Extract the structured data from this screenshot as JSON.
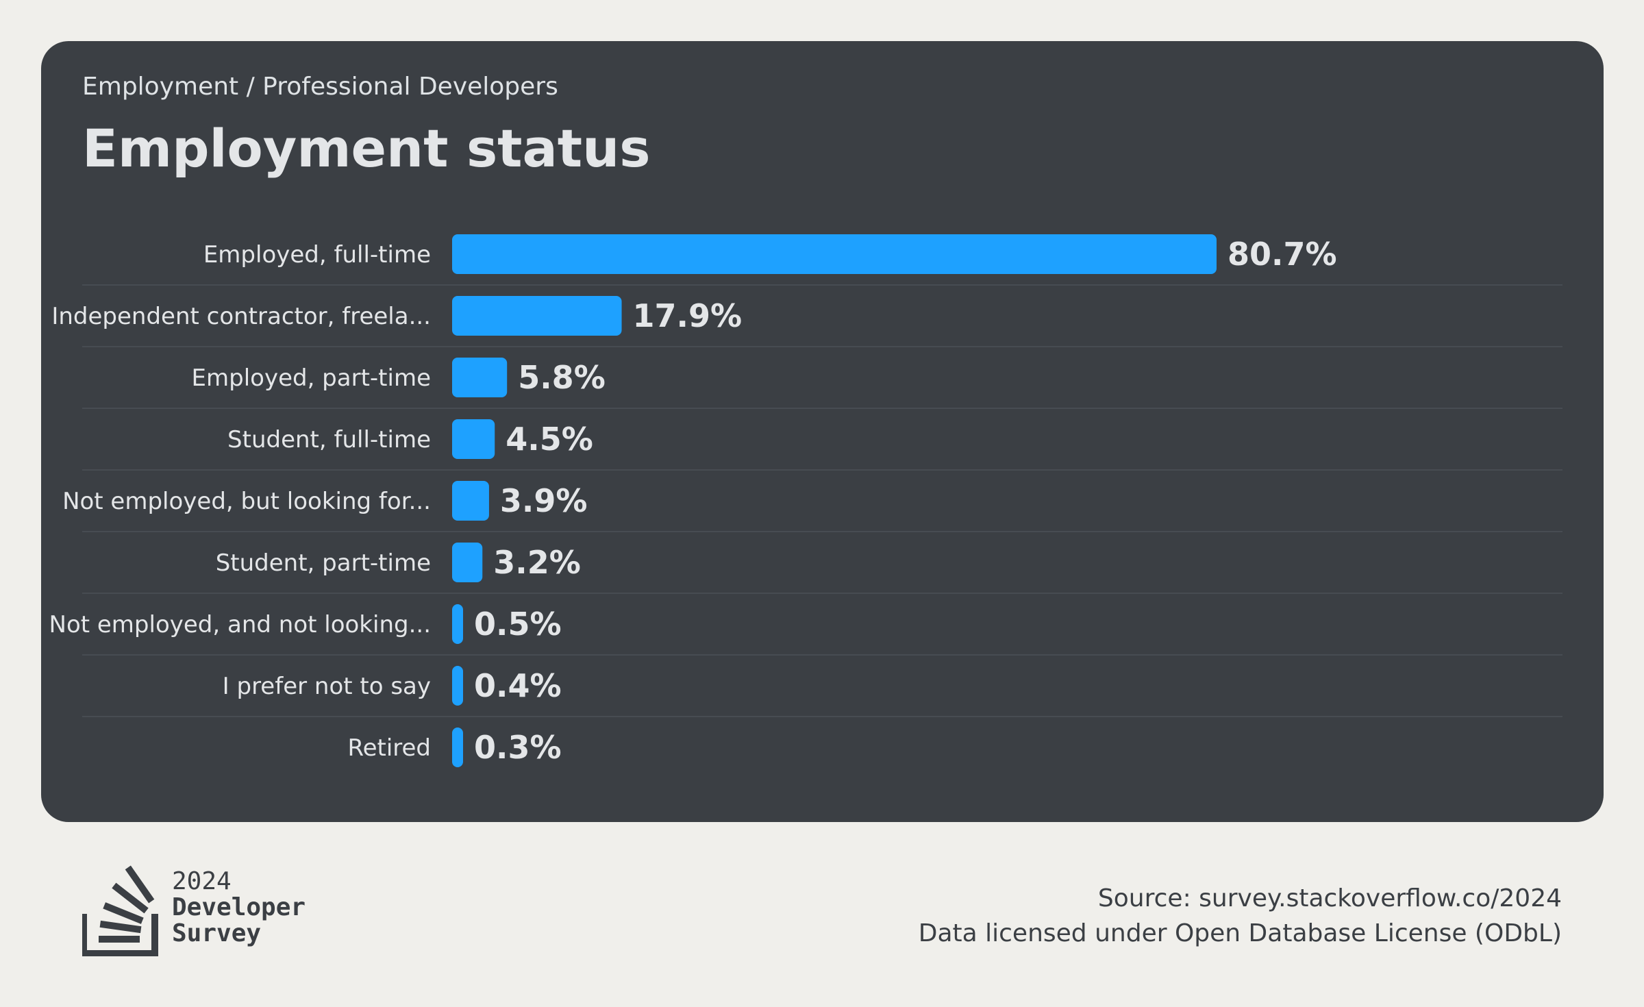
{
  "header": {
    "breadcrumb": "Employment / Professional Developers",
    "title": "Employment status"
  },
  "chart_data": {
    "type": "bar",
    "orientation": "horizontal",
    "categories": [
      "Employed, full-time",
      "Independent contractor, freela...",
      "Employed, part-time",
      "Student, full-time",
      "Not employed, but looking for...",
      "Student, part-time",
      "Not employed, and not looking...",
      "I prefer not to say",
      "Retired"
    ],
    "values": [
      80.7,
      17.9,
      5.8,
      4.5,
      3.9,
      3.2,
      0.5,
      0.4,
      0.3
    ],
    "value_labels": [
      "80.7%",
      "17.9%",
      "5.8%",
      "4.5%",
      "3.9%",
      "3.2%",
      "0.5%",
      "0.4%",
      "0.3%"
    ],
    "unit": "%",
    "title": "Employment status",
    "bar_color": "#1ea1ff",
    "grid": false
  },
  "footer": {
    "logo_year": "2024",
    "logo_line1": "Developer",
    "logo_line2": "Survey",
    "source": "Source: survey.stackoverflow.co/2024",
    "license": "Data licensed under Open Database License (ODbL)"
  }
}
